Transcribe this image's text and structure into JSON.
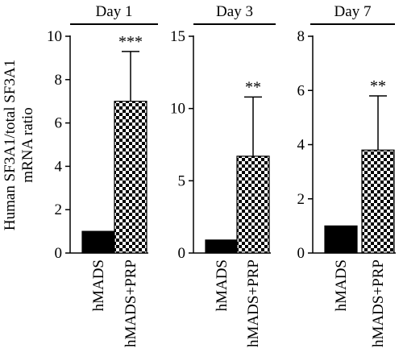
{
  "colors": {
    "hmads_bar": "#000000",
    "prp_pattern_dark": "#000000",
    "prp_pattern_light": "#ffffff",
    "axis": "#000000"
  },
  "chart_data": [
    {
      "type": "bar",
      "title": "Day 1",
      "ylabel": "Human SF3A1/total SF3A1 mRNA ratio",
      "categories": [
        "hMADS",
        "hMADS+PRP"
      ],
      "values": [
        1.0,
        7.0
      ],
      "error_upper": [
        1.0,
        9.3
      ],
      "annotations": [
        "",
        "***"
      ],
      "ylim": [
        0,
        10
      ],
      "yticks": [
        0,
        2,
        4,
        6,
        8,
        10
      ]
    },
    {
      "type": "bar",
      "title": "Day 3",
      "categories": [
        "hMADS",
        "hMADS+PRP"
      ],
      "values": [
        0.9,
        6.7
      ],
      "error_upper": [
        0.9,
        10.8
      ],
      "annotations": [
        "",
        "**"
      ],
      "ylim": [
        0,
        15
      ],
      "yticks": [
        0,
        5,
        10,
        15
      ]
    },
    {
      "type": "bar",
      "title": "Day 7",
      "categories": [
        "hMADS",
        "hMADS+PRP"
      ],
      "values": [
        1.0,
        3.8
      ],
      "error_upper": [
        1.0,
        5.8
      ],
      "annotations": [
        "",
        "**"
      ],
      "ylim": [
        0,
        8
      ],
      "yticks": [
        0,
        2,
        4,
        6,
        8
      ]
    }
  ]
}
